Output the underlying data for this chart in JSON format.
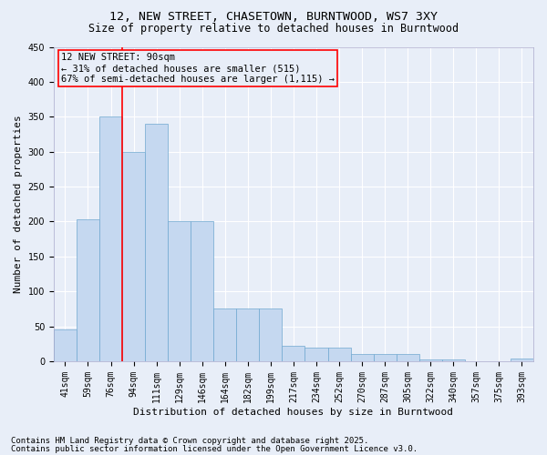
{
  "title1": "12, NEW STREET, CHASETOWN, BURNTWOOD, WS7 3XY",
  "title2": "Size of property relative to detached houses in Burntwood",
  "xlabel": "Distribution of detached houses by size in Burntwood",
  "ylabel": "Number of detached properties",
  "categories": [
    "41sqm",
    "59sqm",
    "76sqm",
    "94sqm",
    "111sqm",
    "129sqm",
    "146sqm",
    "164sqm",
    "182sqm",
    "199sqm",
    "217sqm",
    "234sqm",
    "252sqm",
    "270sqm",
    "287sqm",
    "305sqm",
    "322sqm",
    "340sqm",
    "357sqm",
    "375sqm",
    "393sqm"
  ],
  "values": [
    45,
    203,
    350,
    300,
    340,
    200,
    200,
    75,
    75,
    75,
    22,
    19,
    20,
    10,
    10,
    10,
    3,
    3,
    0,
    0,
    4
  ],
  "bar_color": "#c5d8f0",
  "bar_edge_color": "#6fa8d0",
  "annotation_title": "12 NEW STREET: 90sqm",
  "annotation_line1": "← 31% of detached houses are smaller (515)",
  "annotation_line2": "67% of semi-detached houses are larger (1,115) →",
  "annotation_box_color": "red",
  "vline_color": "red",
  "footnote1": "Contains HM Land Registry data © Crown copyright and database right 2025.",
  "footnote2": "Contains public sector information licensed under the Open Government Licence v3.0.",
  "ylim": [
    0,
    450
  ],
  "yticks": [
    0,
    50,
    100,
    150,
    200,
    250,
    300,
    350,
    400,
    450
  ],
  "background_color": "#e8eef8",
  "grid_color": "#ffffff",
  "title_fontsize": 9.5,
  "subtitle_fontsize": 8.5,
  "axis_label_fontsize": 8,
  "tick_fontsize": 7,
  "annotation_fontsize": 7.5,
  "footnote_fontsize": 6.5
}
